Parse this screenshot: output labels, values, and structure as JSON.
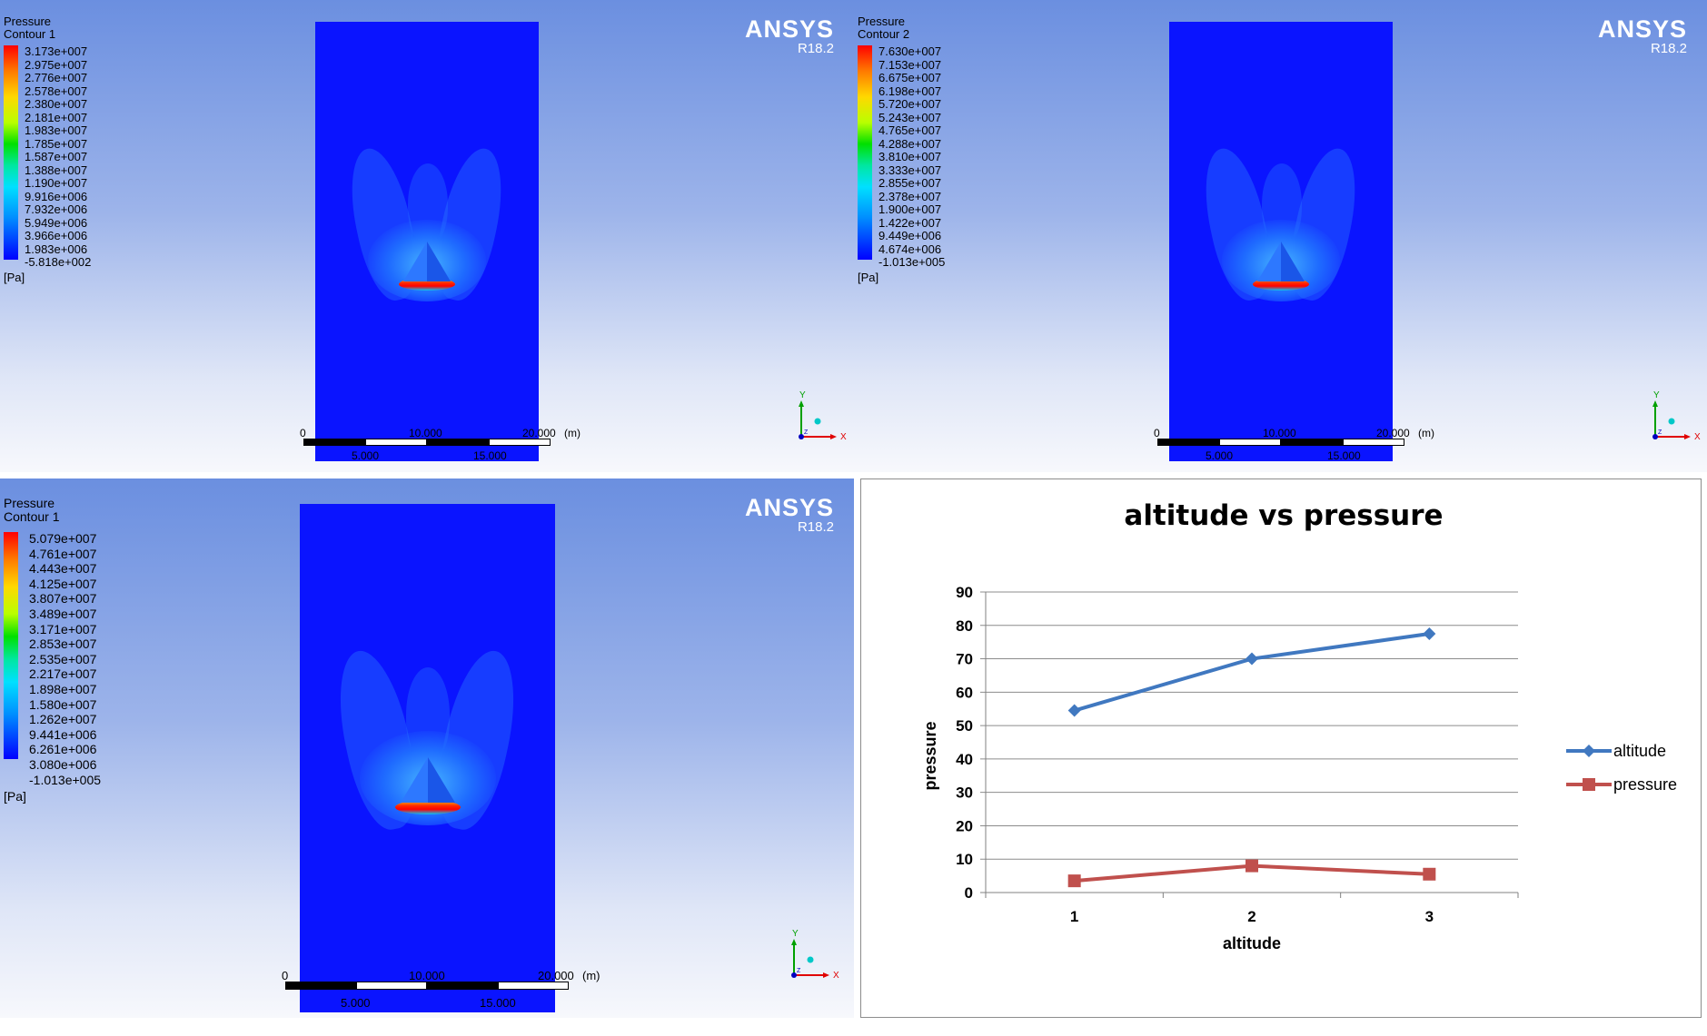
{
  "panels": [
    {
      "title": "Pressure",
      "subtitle": "Contour 1",
      "levels": [
        "3.173e+007",
        "2.975e+007",
        "2.776e+007",
        "2.578e+007",
        "2.380e+007",
        "2.181e+007",
        "1.983e+007",
        "1.785e+007",
        "1.587e+007",
        "1.388e+007",
        "1.190e+007",
        "9.916e+006",
        "7.932e+006",
        "5.949e+006",
        "3.966e+006",
        "1.983e+006",
        "-5.818e+002"
      ],
      "unit": "[Pa]",
      "brand": "ANSYS",
      "version": "R18.2",
      "scale": {
        "top": [
          "0",
          "10.000",
          "20.000",
          "(m)"
        ],
        "bottom": [
          "5.000",
          "15.000"
        ]
      },
      "axis": {
        "y": "Y",
        "x": "X",
        "z": "Z"
      }
    },
    {
      "title": "Pressure",
      "subtitle": "Contour 2",
      "levels": [
        "7.630e+007",
        "7.153e+007",
        "6.675e+007",
        "6.198e+007",
        "5.720e+007",
        "5.243e+007",
        "4.765e+007",
        "4.288e+007",
        "3.810e+007",
        "3.333e+007",
        "2.855e+007",
        "2.378e+007",
        "1.900e+007",
        "1.422e+007",
        "9.449e+006",
        "4.674e+006",
        "-1.013e+005"
      ],
      "unit": "[Pa]",
      "brand": "ANSYS",
      "version": "R18.2",
      "scale": {
        "top": [
          "0",
          "10.000",
          "20.000",
          "(m)"
        ],
        "bottom": [
          "5.000",
          "15.000"
        ]
      },
      "axis": {
        "y": "Y",
        "x": "X",
        "z": "Z"
      }
    },
    {
      "title": "Pressure",
      "subtitle": "Contour 1",
      "levels": [
        "5.079e+007",
        "4.761e+007",
        "4.443e+007",
        "4.125e+007",
        "3.807e+007",
        "3.489e+007",
        "3.171e+007",
        "2.853e+007",
        "2.535e+007",
        "2.217e+007",
        "1.898e+007",
        "1.580e+007",
        "1.262e+007",
        "9.441e+006",
        "6.261e+006",
        "3.080e+006",
        "-1.013e+005"
      ],
      "unit": "[Pa]",
      "brand": "ANSYS",
      "version": "R18.2",
      "scale": {
        "top": [
          "0",
          "10.000",
          "20.000",
          "(m)"
        ],
        "bottom": [
          "5.000",
          "15.000"
        ]
      },
      "axis": {
        "y": "Y",
        "x": "X",
        "z": "Z"
      }
    }
  ],
  "chart_data": {
    "type": "line",
    "title": "altitude vs pressure",
    "xlabel": "altitude",
    "ylabel": "pressure",
    "categories": [
      "1",
      "2",
      "3"
    ],
    "yticks": [
      "0",
      "10",
      "20",
      "30",
      "40",
      "50",
      "60",
      "70",
      "80",
      "90"
    ],
    "ylim": [
      0,
      90
    ],
    "grid": true,
    "legend_position": "right",
    "series": [
      {
        "name": "altitude",
        "values": [
          54.5,
          70,
          77.5
        ],
        "color": "#4078c0",
        "marker": "diamond"
      },
      {
        "name": "pressure",
        "values": [
          3.5,
          8,
          5.5
        ],
        "color": "#c0504d",
        "marker": "square"
      }
    ]
  }
}
